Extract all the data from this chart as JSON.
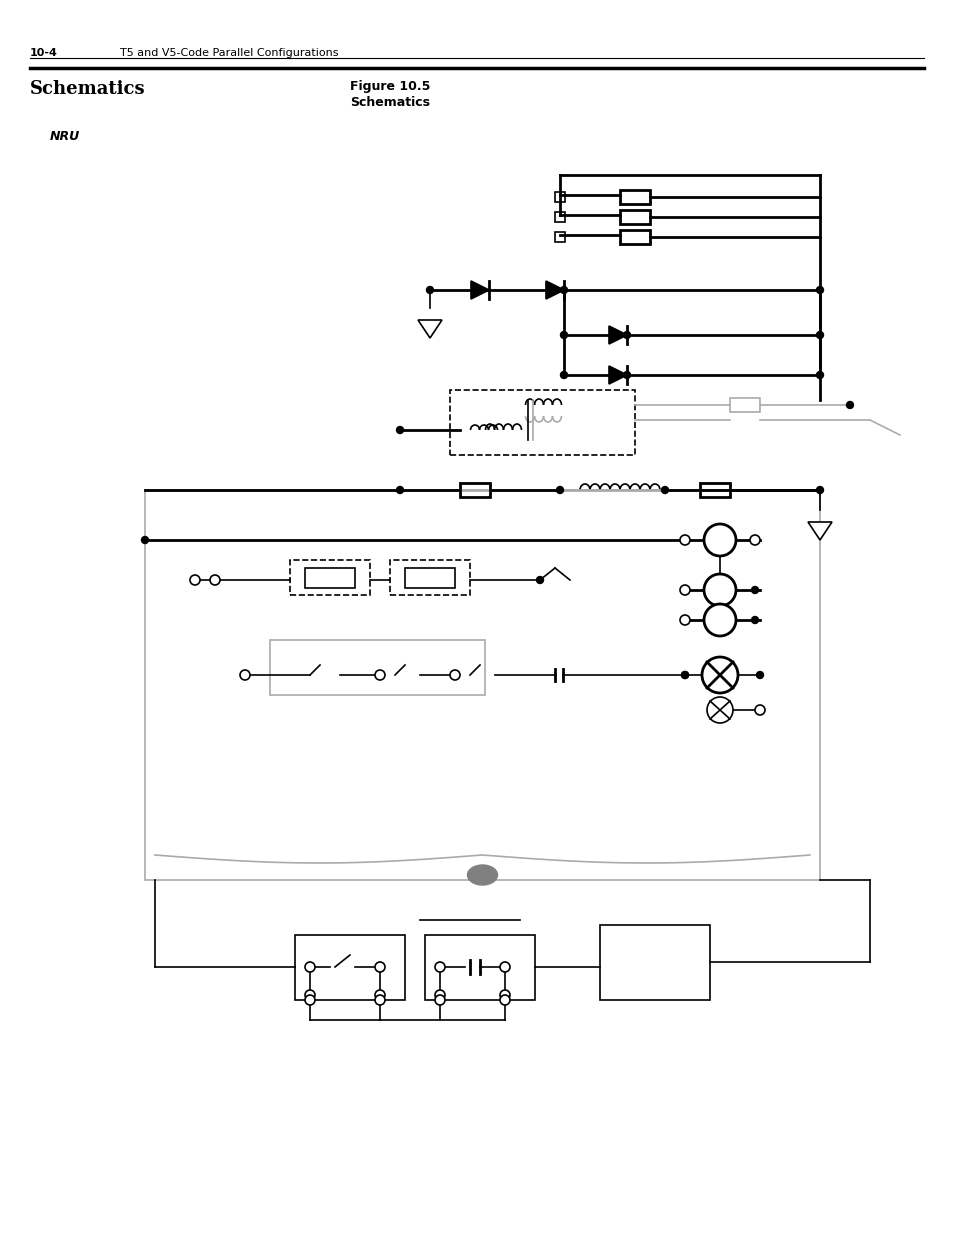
{
  "page_number": "10-4",
  "page_header": "T5 and V5-Code Parallel Configurations",
  "section_title": "Schematics",
  "figure_title": "Figure 10.5",
  "figure_subtitle": "Schematics",
  "nru_label": "NRU",
  "bg_color": "#ffffff",
  "line_color": "#000000",
  "gray_color": "#aaaaaa",
  "dashed_color": "#000000"
}
